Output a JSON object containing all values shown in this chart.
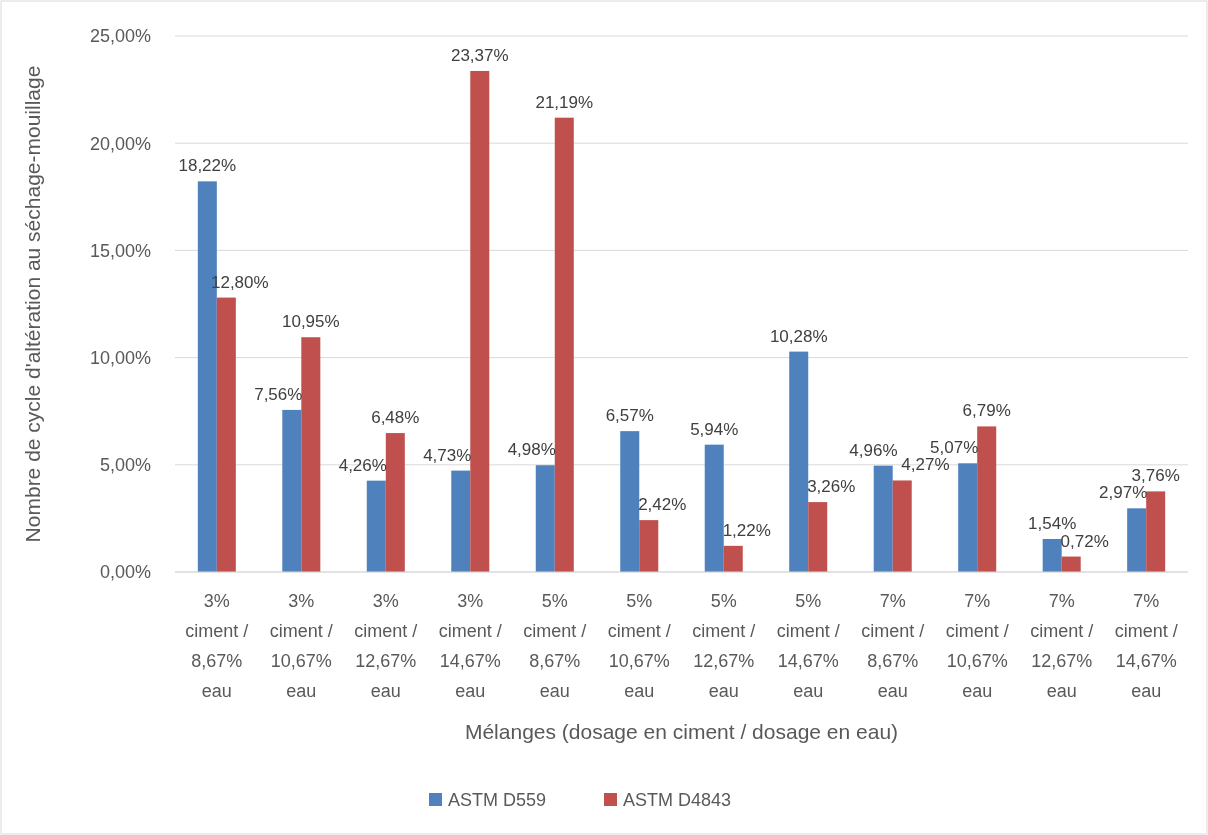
{
  "chart_data": {
    "type": "bar",
    "xlabel": "Mélanges (dosage en ciment / dosage en eau)",
    "ylabel": "Nombre de cycle d'altération au séchage-mouillage",
    "categories": [
      "3% ciment / 8,67% eau",
      "3% ciment / 10,67% eau",
      "3% ciment / 12,67% eau",
      "3% ciment / 14,67% eau",
      "5% ciment / 8,67% eau",
      "5% ciment / 10,67% eau",
      "5% ciment / 12,67% eau",
      "5% ciment / 14,67% eau",
      "7% ciment / 8,67% eau",
      "7% ciment / 10,67% eau",
      "7% ciment / 12,67% eau",
      "7% ciment / 14,67% eau"
    ],
    "series": [
      {
        "name": "ASTM D559",
        "color": "#4f81bd",
        "values": [
          18.22,
          7.56,
          4.26,
          4.73,
          4.98,
          6.57,
          5.94,
          10.28,
          4.96,
          5.07,
          1.54,
          2.97
        ],
        "value_labels": [
          "18,22%",
          "7,56%",
          "4,26%",
          "4,73%",
          "4,98%",
          "6,57%",
          "5,94%",
          "10,28%",
          "4,96%",
          "5,07%",
          "1,54%",
          "2,97%"
        ]
      },
      {
        "name": "ASTM D4843",
        "color": "#c0504d",
        "values": [
          12.8,
          10.95,
          6.48,
          23.37,
          21.19,
          2.42,
          1.22,
          3.26,
          4.27,
          6.79,
          0.72,
          3.76
        ],
        "value_labels": [
          "12,80%",
          "10,95%",
          "6,48%",
          "23,37%",
          "21,19%",
          "2,42%",
          "1,22%",
          "3,26%",
          "4,27%",
          "6,79%",
          "0,72%",
          "3,76%"
        ]
      }
    ],
    "ylim": [
      0,
      25
    ],
    "yticks": [
      {
        "value": 0,
        "label": "0,00%"
      },
      {
        "value": 5,
        "label": "5,00%"
      },
      {
        "value": 10,
        "label": "10,00%"
      },
      {
        "value": 15,
        "label": "15,00%"
      },
      {
        "value": 20,
        "label": "20,00%"
      },
      {
        "value": 25,
        "label": "25,00%"
      }
    ],
    "grid": "y",
    "legend": "bottom"
  }
}
